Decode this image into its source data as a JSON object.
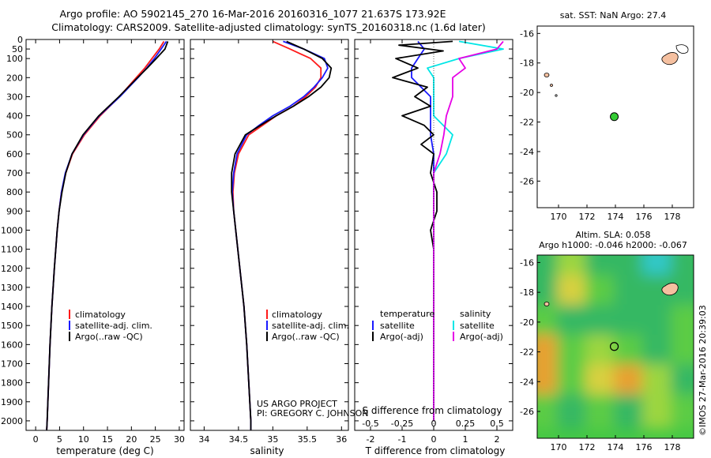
{
  "header": {
    "title_line1": "Argo profile: AO 5902145_270 16-Mar-2016 20160316_1077 21.637S 173.92E",
    "title_line2": "Climatology: CARS2009. Satellite-adjusted climatology: synTS_20160318.nc (1.6d later)"
  },
  "colors": {
    "climatology": "#ff1a1a",
    "satellite": "#1a1aff",
    "argo": "#000000",
    "salinity_satellite": "#00e6e6",
    "salinity_argo": "#e600e6",
    "land": "#f5c0a0",
    "float_marker": "#33cc33"
  },
  "credits": {
    "project": "US ARGO PROJECT",
    "pi": "PI: GREGORY C. JOHNSON",
    "stamp": "©IMOS 27-Mar-2016 20:39:03"
  },
  "chart_data": [
    {
      "type": "line",
      "name": "temperature",
      "xlabel": "temperature (deg C)",
      "xlim": [
        -2,
        31
      ],
      "ylim": [
        2050,
        0
      ],
      "y_inverted": true,
      "xticks": [
        0,
        5,
        10,
        15,
        20,
        25,
        30
      ],
      "yticks": [
        0,
        50,
        100,
        200,
        300,
        400,
        500,
        600,
        700,
        800,
        900,
        1000,
        1100,
        1200,
        1300,
        1400,
        1500,
        1600,
        1700,
        1800,
        1900,
        2000
      ],
      "legend": [
        "climatology",
        "satellite-adj. clim.",
        "Argo(..raw -QC)"
      ],
      "series": [
        {
          "name": "climatology",
          "color": "#ff1a1a",
          "depth": [
            10,
            50,
            100,
            150,
            200,
            300,
            400,
            500,
            600,
            700,
            800,
            900,
            1000,
            1200,
            1400,
            1600,
            1800,
            2000,
            2050
          ],
          "values": [
            26.8,
            25.8,
            24.3,
            22.8,
            21.0,
            17.5,
            13.5,
            10.2,
            7.7,
            6.3,
            5.4,
            4.9,
            4.5,
            3.9,
            3.4,
            3.0,
            2.7,
            2.4,
            2.3
          ]
        },
        {
          "name": "satellite-adj. clim.",
          "color": "#1a1aff",
          "depth": [
            10,
            50,
            100,
            150,
            200,
            300,
            400,
            500,
            600,
            700,
            800,
            900,
            1000,
            1200,
            1400,
            1600,
            1800,
            2000,
            2050
          ],
          "values": [
            27.3,
            26.2,
            24.8,
            23.2,
            21.4,
            17.6,
            13.3,
            10.0,
            7.6,
            6.2,
            5.4,
            4.9,
            4.5,
            3.9,
            3.4,
            3.0,
            2.7,
            2.4,
            2.3
          ]
        },
        {
          "name": "Argo(..raw -QC)",
          "color": "#000000",
          "depth": [
            10,
            50,
            100,
            150,
            200,
            300,
            400,
            500,
            600,
            700,
            800,
            900,
            1000,
            1200,
            1400,
            1600,
            1800,
            2000,
            2050
          ],
          "values": [
            27.6,
            27.0,
            25.2,
            23.3,
            21.3,
            17.4,
            13.2,
            9.9,
            7.6,
            6.3,
            5.5,
            4.9,
            4.5,
            3.9,
            3.4,
            3.0,
            2.7,
            2.4,
            2.3
          ]
        }
      ]
    },
    {
      "type": "line",
      "name": "salinity",
      "xlabel": "salinity",
      "xlim": [
        33.8,
        36.1
      ],
      "ylim": [
        2050,
        0
      ],
      "y_inverted": true,
      "xticks": [
        34,
        34.5,
        35,
        35.5,
        36
      ],
      "legend": [
        "climatology",
        "satellite-adj. clim.",
        "Argo(..raw -QC)"
      ],
      "series": [
        {
          "name": "climatology",
          "color": "#ff1a1a",
          "depth": [
            10,
            50,
            100,
            150,
            200,
            250,
            300,
            350,
            400,
            450,
            500,
            600,
            700,
            800,
            900,
            1000,
            1200,
            1400,
            1600,
            1800,
            2000,
            2050
          ],
          "values": [
            35.0,
            35.25,
            35.55,
            35.7,
            35.7,
            35.62,
            35.48,
            35.3,
            35.05,
            34.85,
            34.65,
            34.5,
            34.44,
            34.42,
            34.43,
            34.46,
            34.52,
            34.58,
            34.62,
            34.65,
            34.68,
            34.68
          ]
        },
        {
          "name": "satellite-adj. clim.",
          "color": "#1a1aff",
          "depth": [
            10,
            50,
            100,
            150,
            200,
            250,
            300,
            350,
            400,
            450,
            500,
            600,
            700,
            800,
            900,
            1000,
            1200,
            1400,
            1600,
            1800,
            2000,
            2050
          ],
          "values": [
            35.15,
            35.45,
            35.75,
            35.8,
            35.72,
            35.6,
            35.45,
            35.25,
            35.0,
            34.8,
            34.62,
            34.48,
            34.43,
            34.41,
            34.43,
            34.46,
            34.52,
            34.58,
            34.62,
            34.65,
            34.68,
            34.68
          ]
        },
        {
          "name": "Argo(..raw -QC)",
          "color": "#000000",
          "depth": [
            10,
            50,
            100,
            150,
            200,
            250,
            300,
            350,
            400,
            450,
            500,
            600,
            700,
            800,
            900,
            1000,
            1200,
            1400,
            1600,
            1800,
            2000,
            2050
          ],
          "values": [
            35.2,
            35.45,
            35.72,
            35.85,
            35.82,
            35.7,
            35.52,
            35.3,
            35.05,
            34.82,
            34.6,
            34.45,
            34.4,
            34.4,
            34.43,
            34.46,
            34.52,
            34.58,
            34.62,
            34.65,
            34.68,
            34.68
          ]
        }
      ]
    },
    {
      "type": "line",
      "name": "difference",
      "xlabel_top": "S difference from climatology",
      "xlabel": "T difference from climatology",
      "xlim": [
        -2.5,
        2.5
      ],
      "ylim": [
        2050,
        0
      ],
      "y_inverted": true,
      "xticks_T": [
        -2,
        -1,
        0,
        1,
        2
      ],
      "xticks_S": [
        -0.5,
        -0.25,
        0,
        0.25,
        0.5
      ],
      "legend_titles": [
        "temperature",
        "salinity"
      ],
      "legend": [
        "satellite",
        "Argo(-adj)",
        "satellite",
        "Argo(-adj)"
      ],
      "series": [
        {
          "name": "satellite",
          "variable": "temperature",
          "color": "#1a1aff",
          "depth": [
            10,
            50,
            100,
            150,
            200,
            300,
            400,
            500,
            600,
            800,
            1000,
            1200,
            1500,
            2000
          ],
          "values": [
            -0.5,
            -0.3,
            -0.5,
            -0.7,
            -0.7,
            -0.1,
            -0.1,
            -0.1,
            0.0,
            0.0,
            0.0,
            0.0,
            0.0,
            0.0
          ]
        },
        {
          "name": "Argo(-adj)",
          "variable": "temperature",
          "color": "#000000",
          "depth": [
            10,
            30,
            60,
            100,
            150,
            200,
            250,
            300,
            350,
            400,
            450,
            500,
            550,
            600,
            700,
            800,
            900,
            1000,
            1100,
            1200,
            1500,
            2000
          ],
          "values": [
            0.6,
            -1.1,
            0.3,
            -1.2,
            -0.5,
            -1.3,
            -0.2,
            -0.6,
            -0.1,
            -1.0,
            -0.3,
            0.0,
            -0.4,
            0.0,
            -0.1,
            0.1,
            0.1,
            -0.1,
            0.0,
            0.0,
            0.0,
            0.0
          ]
        },
        {
          "name": "satellite",
          "variable": "salinity",
          "color": "#00e6e6",
          "depth": [
            10,
            50,
            100,
            150,
            200,
            300,
            400,
            500,
            600,
            700,
            800,
            1000,
            1500,
            2000
          ],
          "values": [
            0.2,
            0.55,
            0.2,
            -0.05,
            0.0,
            0.0,
            0.0,
            0.15,
            0.1,
            0.0,
            0.0,
            0.0,
            0.0,
            0.0
          ]
        },
        {
          "name": "Argo(-adj)",
          "variable": "salinity",
          "color": "#e600e6",
          "depth": [
            10,
            50,
            100,
            150,
            200,
            300,
            400,
            500,
            600,
            700,
            800,
            1000,
            1500,
            2000
          ],
          "values": [
            0.55,
            0.5,
            0.2,
            0.25,
            0.15,
            0.15,
            0.1,
            0.08,
            0.05,
            0.0,
            0.0,
            0.0,
            0.0,
            0.0
          ]
        }
      ]
    },
    {
      "type": "map",
      "name": "sst-map",
      "title": "sat. SST: NaN Argo: 27.4",
      "xlim": [
        168.5,
        179.5
      ],
      "ylim": [
        -27.8,
        -15.5
      ],
      "xticks": [
        170,
        172,
        174,
        176,
        178
      ],
      "yticks": [
        -16,
        -18,
        -20,
        -22,
        -24,
        -26
      ],
      "float_position": {
        "lon": 173.92,
        "lat": -21.637
      }
    },
    {
      "type": "heatmap",
      "name": "sla-map",
      "title_line1": "Altim. SLA: 0.058",
      "title_line2": "Argo h1000: -0.046 h2000: -0.067",
      "xlim": [
        168.5,
        179.5
      ],
      "ylim": [
        -27.8,
        -15.5
      ],
      "xticks": [
        170,
        172,
        174,
        176,
        178
      ],
      "yticks": [
        -16,
        -18,
        -20,
        -22,
        -24,
        -26
      ],
      "float_position": {
        "lon": 173.92,
        "lat": -21.637
      },
      "grid_lon": [
        169,
        171,
        173,
        175,
        177,
        179
      ],
      "grid_lat": [
        -16,
        -18,
        -20,
        -22,
        -24,
        -26
      ],
      "sla": [
        [
          0.0,
          0.06,
          0.02,
          0.0,
          -0.02,
          0.0
        ],
        [
          0.02,
          0.1,
          0.03,
          0.02,
          0.0,
          0.01
        ],
        [
          0.03,
          0.02,
          0.02,
          0.01,
          0.02,
          0.03
        ],
        [
          0.14,
          0.04,
          0.07,
          0.05,
          0.0,
          0.03
        ],
        [
          0.12,
          0.03,
          0.1,
          0.14,
          0.08,
          0.02
        ],
        [
          0.05,
          0.0,
          0.04,
          0.02,
          0.06,
          0.04
        ]
      ]
    }
  ]
}
